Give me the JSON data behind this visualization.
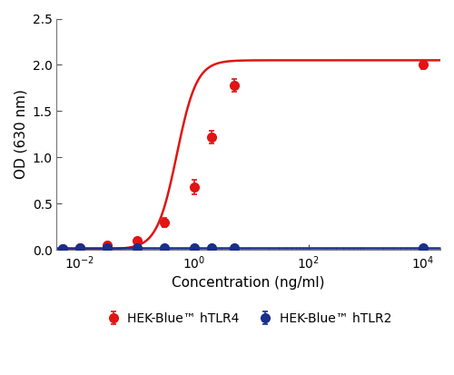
{
  "xlabel": "Concentration (ng/ml)",
  "ylabel": "OD (630 nm)",
  "xlim": [
    0.004,
    20000
  ],
  "ylim": [
    0,
    2.5
  ],
  "yticks": [
    0.0,
    0.5,
    1.0,
    1.5,
    2.0,
    2.5
  ],
  "xticks_major": [
    0.01,
    1.0,
    100,
    10000
  ],
  "xtick_labels": [
    "$10^{-2}$",
    "$10^{0}$",
    "$10^{2}$",
    "$10^{4}$"
  ],
  "red_x": [
    0.005,
    0.01,
    0.03,
    0.1,
    0.3,
    1.0,
    2.0,
    5.0,
    10000.0
  ],
  "red_y": [
    0.01,
    0.02,
    0.05,
    0.1,
    0.3,
    0.68,
    1.22,
    1.78,
    2.0
  ],
  "red_yerr": [
    0.008,
    0.01,
    0.02,
    0.02,
    0.05,
    0.08,
    0.07,
    0.07,
    0.04
  ],
  "blue_x": [
    0.005,
    0.01,
    0.03,
    0.1,
    0.3,
    1.0,
    2.0,
    5.0,
    10000.0
  ],
  "blue_y": [
    0.01,
    0.02,
    0.02,
    0.02,
    0.02,
    0.02,
    0.02,
    0.02,
    0.02
  ],
  "blue_yerr": [
    0.005,
    0.005,
    0.005,
    0.005,
    0.005,
    0.005,
    0.005,
    0.005,
    0.005
  ],
  "red_color": "#e01515",
  "blue_color": "#1a2e8a",
  "legend_red": "HEK-Blue™ hTLR4",
  "legend_blue": "HEK-Blue™ hTLR2",
  "marker_size": 7,
  "linewidth": 1.8,
  "background_color": "#ffffff"
}
